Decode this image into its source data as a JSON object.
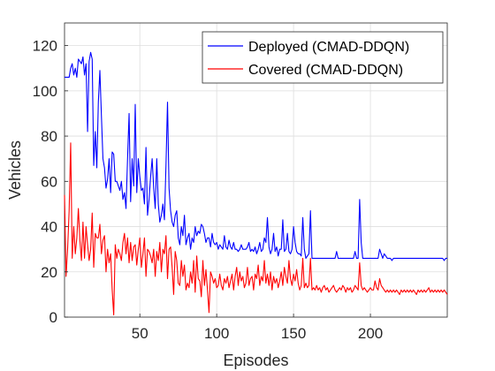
{
  "chart_data": {
    "type": "line",
    "xlabel": "Episodes",
    "ylabel": "Vehicles",
    "xlim": [
      1,
      250
    ],
    "ylim": [
      0,
      130
    ],
    "xticks": [
      50,
      100,
      150,
      200
    ],
    "yticks": [
      0,
      20,
      40,
      60,
      80,
      100,
      120
    ],
    "grid": true,
    "legend_position": "top-right",
    "series": [
      {
        "name": "Deployed (CMAD-DDQN)",
        "color": "#0000ff",
        "x": [
          1,
          2,
          3,
          4,
          5,
          6,
          7,
          8,
          9,
          10,
          11,
          12,
          13,
          14,
          15,
          16,
          17,
          18,
          19,
          20,
          21,
          22,
          23,
          24,
          25,
          26,
          27,
          28,
          29,
          30,
          31,
          32,
          33,
          34,
          35,
          36,
          37,
          38,
          39,
          40,
          41,
          42,
          43,
          44,
          45,
          46,
          47,
          48,
          49,
          50,
          51,
          52,
          53,
          54,
          55,
          56,
          57,
          58,
          59,
          60,
          61,
          62,
          63,
          64,
          65,
          66,
          67,
          68,
          69,
          70,
          71,
          72,
          73,
          74,
          75,
          76,
          77,
          78,
          79,
          80,
          81,
          82,
          83,
          84,
          85,
          86,
          87,
          88,
          89,
          90,
          91,
          92,
          93,
          94,
          95,
          96,
          97,
          98,
          99,
          100,
          101,
          102,
          103,
          104,
          105,
          106,
          107,
          108,
          109,
          110,
          111,
          112,
          113,
          114,
          115,
          116,
          117,
          118,
          119,
          120,
          121,
          122,
          123,
          124,
          125,
          126,
          127,
          128,
          129,
          130,
          131,
          132,
          133,
          134,
          135,
          136,
          137,
          138,
          139,
          140,
          141,
          142,
          143,
          144,
          145,
          146,
          147,
          148,
          149,
          150,
          151,
          152,
          153,
          154,
          155,
          156,
          157,
          158,
          159,
          160,
          161,
          162,
          163,
          164,
          165,
          166,
          167,
          168,
          169,
          170,
          171,
          172,
          173,
          174,
          175,
          176,
          177,
          178,
          179,
          180,
          181,
          182,
          183,
          184,
          185,
          186,
          187,
          188,
          189,
          190,
          191,
          192,
          193,
          194,
          195,
          196,
          197,
          198,
          199,
          200,
          201,
          202,
          203,
          204,
          205,
          206,
          207,
          208,
          209,
          210,
          211,
          212,
          213,
          214,
          215,
          216,
          217,
          218,
          219,
          220,
          221,
          222,
          223,
          224,
          225,
          226,
          227,
          228,
          229,
          230,
          231,
          232,
          233,
          234,
          235,
          236,
          237,
          238,
          239,
          240,
          241,
          242,
          243,
          244,
          245,
          246,
          247,
          248,
          249,
          250
        ],
        "y": [
          106,
          106,
          106,
          106,
          110,
          112,
          107,
          110,
          106,
          114,
          113,
          112,
          115,
          107,
          112,
          82,
          113,
          117,
          114,
          67,
          82,
          66,
          95,
          109,
          89,
          70,
          66,
          57,
          61,
          70,
          55,
          73,
          72,
          60,
          60,
          58,
          56,
          60,
          52,
          55,
          48,
          70,
          90,
          51,
          70,
          58,
          94,
          55,
          70,
          62,
          56,
          57,
          50,
          75,
          45,
          52,
          62,
          70,
          57,
          48,
          70,
          50,
          42,
          45,
          50,
          43,
          67,
          95,
          57,
          47,
          42,
          40,
          45,
          47,
          35,
          32,
          40,
          36,
          45,
          32,
          35,
          37,
          30,
          35,
          33,
          40,
          36,
          38,
          37,
          41,
          40,
          37,
          33,
          35,
          35,
          31,
          37,
          33,
          32,
          33,
          30,
          32,
          31,
          30,
          36,
          31,
          30,
          34,
          31,
          30,
          33,
          30,
          30,
          29,
          30,
          32,
          30,
          30,
          30,
          31,
          33,
          29,
          30,
          29,
          31,
          28,
          30,
          33,
          29,
          30,
          35,
          33,
          44,
          31,
          28,
          30,
          37,
          29,
          31,
          27,
          30,
          30,
          43,
          29,
          30,
          37,
          29,
          28,
          30,
          40,
          33,
          29,
          28,
          28,
          27,
          44,
          30,
          26,
          27,
          28,
          47,
          26,
          26,
          26,
          26,
          26,
          26,
          26,
          26,
          26,
          26,
          26,
          26,
          26,
          26,
          26,
          26,
          29,
          26,
          26,
          26,
          26,
          26,
          26,
          26,
          26,
          26,
          26,
          26,
          29,
          26,
          26,
          52,
          33,
          26,
          26,
          26,
          26,
          26,
          26,
          26,
          26,
          26,
          26,
          26,
          30,
          28,
          26,
          28,
          27,
          26,
          26,
          26,
          25,
          26,
          26,
          26,
          26,
          26,
          26,
          26,
          26,
          26,
          26,
          26,
          26,
          26,
          26,
          26,
          26,
          26,
          26,
          26,
          26,
          26,
          26,
          26,
          26,
          26,
          26,
          26,
          26,
          26,
          26,
          26,
          26,
          26,
          25,
          26,
          26
        ]
      },
      {
        "name": "Covered (CMAD-DDQN)",
        "color": "#ff0000",
        "x": [
          1,
          2,
          3,
          4,
          5,
          6,
          7,
          8,
          9,
          10,
          11,
          12,
          13,
          14,
          15,
          16,
          17,
          18,
          19,
          20,
          21,
          22,
          23,
          24,
          25,
          26,
          27,
          28,
          29,
          30,
          31,
          32,
          33,
          34,
          35,
          36,
          37,
          38,
          39,
          40,
          41,
          42,
          43,
          44,
          45,
          46,
          47,
          48,
          49,
          50,
          51,
          52,
          53,
          54,
          55,
          56,
          57,
          58,
          59,
          60,
          61,
          62,
          63,
          64,
          65,
          66,
          67,
          68,
          69,
          70,
          71,
          72,
          73,
          74,
          75,
          76,
          77,
          78,
          79,
          80,
          81,
          82,
          83,
          84,
          85,
          86,
          87,
          88,
          89,
          90,
          91,
          92,
          93,
          94,
          95,
          96,
          97,
          98,
          99,
          100,
          101,
          102,
          103,
          104,
          105,
          106,
          107,
          108,
          109,
          110,
          111,
          112,
          113,
          114,
          115,
          116,
          117,
          118,
          119,
          120,
          121,
          122,
          123,
          124,
          125,
          126,
          127,
          128,
          129,
          130,
          131,
          132,
          133,
          134,
          135,
          136,
          137,
          138,
          139,
          140,
          141,
          142,
          143,
          144,
          145,
          146,
          147,
          148,
          149,
          150,
          151,
          152,
          153,
          154,
          155,
          156,
          157,
          158,
          159,
          160,
          161,
          162,
          163,
          164,
          165,
          166,
          167,
          168,
          169,
          170,
          171,
          172,
          173,
          174,
          175,
          176,
          177,
          178,
          179,
          180,
          181,
          182,
          183,
          184,
          185,
          186,
          187,
          188,
          189,
          190,
          191,
          192,
          193,
          194,
          195,
          196,
          197,
          198,
          199,
          200,
          201,
          202,
          203,
          204,
          205,
          206,
          207,
          208,
          209,
          210,
          211,
          212,
          213,
          214,
          215,
          216,
          217,
          218,
          219,
          220,
          221,
          222,
          223,
          224,
          225,
          226,
          227,
          228,
          229,
          230,
          231,
          232,
          233,
          234,
          235,
          236,
          237,
          238,
          239,
          240,
          241,
          242,
          243,
          244,
          245,
          246,
          247,
          248,
          249,
          250
        ],
        "y": [
          54,
          18,
          30,
          47,
          77,
          26,
          40,
          28,
          35,
          48,
          34,
          25,
          42,
          26,
          40,
          32,
          25,
          30,
          46,
          22,
          37,
          35,
          35,
          41,
          28,
          34,
          36,
          20,
          30,
          24,
          28,
          12,
          1,
          32,
          26,
          30,
          28,
          25,
          33,
          37,
          28,
          35,
          24,
          33,
          25,
          31,
          32,
          23,
          30,
          35,
          22,
          28,
          35,
          18,
          30,
          29,
          27,
          24,
          30,
          18,
          29,
          25,
          33,
          20,
          30,
          28,
          36,
          17,
          30,
          31,
          22,
          10,
          29,
          25,
          15,
          14,
          25,
          18,
          23,
          12,
          15,
          13,
          20,
          15,
          25,
          11,
          27,
          17,
          16,
          9,
          25,
          14,
          21,
          12,
          2,
          20,
          18,
          15,
          17,
          13,
          14,
          19,
          14,
          12,
          17,
          15,
          18,
          13,
          16,
          19,
          12,
          18,
          22,
          14,
          20,
          16,
          18,
          13,
          15,
          22,
          14,
          17,
          18,
          12,
          19,
          17,
          23,
          14,
          18,
          16,
          25,
          15,
          19,
          14,
          20,
          12,
          18,
          15,
          17,
          13,
          16,
          20,
          14,
          22,
          18,
          15,
          25,
          17,
          14,
          19,
          16,
          21,
          15,
          12,
          14,
          26,
          13,
          15,
          13,
          14,
          26,
          12,
          13,
          12,
          14,
          12,
          13,
          11,
          13,
          14,
          12,
          13,
          11,
          12,
          13,
          14,
          12,
          11,
          12,
          13,
          12,
          14,
          13,
          11,
          13,
          12,
          13,
          11,
          12,
          14,
          13,
          12,
          24,
          14,
          12,
          13,
          12,
          11,
          12,
          13,
          12,
          12,
          16,
          13,
          12,
          17,
          14,
          13,
          12,
          11,
          12,
          11,
          12,
          11,
          12,
          11,
          12,
          11,
          10,
          12,
          11,
          12,
          11,
          12,
          11,
          12,
          11,
          12,
          11,
          10,
          12,
          11,
          12,
          11,
          12,
          11,
          12,
          13,
          11,
          12,
          11,
          12,
          11,
          12,
          11,
          12,
          11,
          12,
          11,
          10
        ]
      }
    ]
  }
}
